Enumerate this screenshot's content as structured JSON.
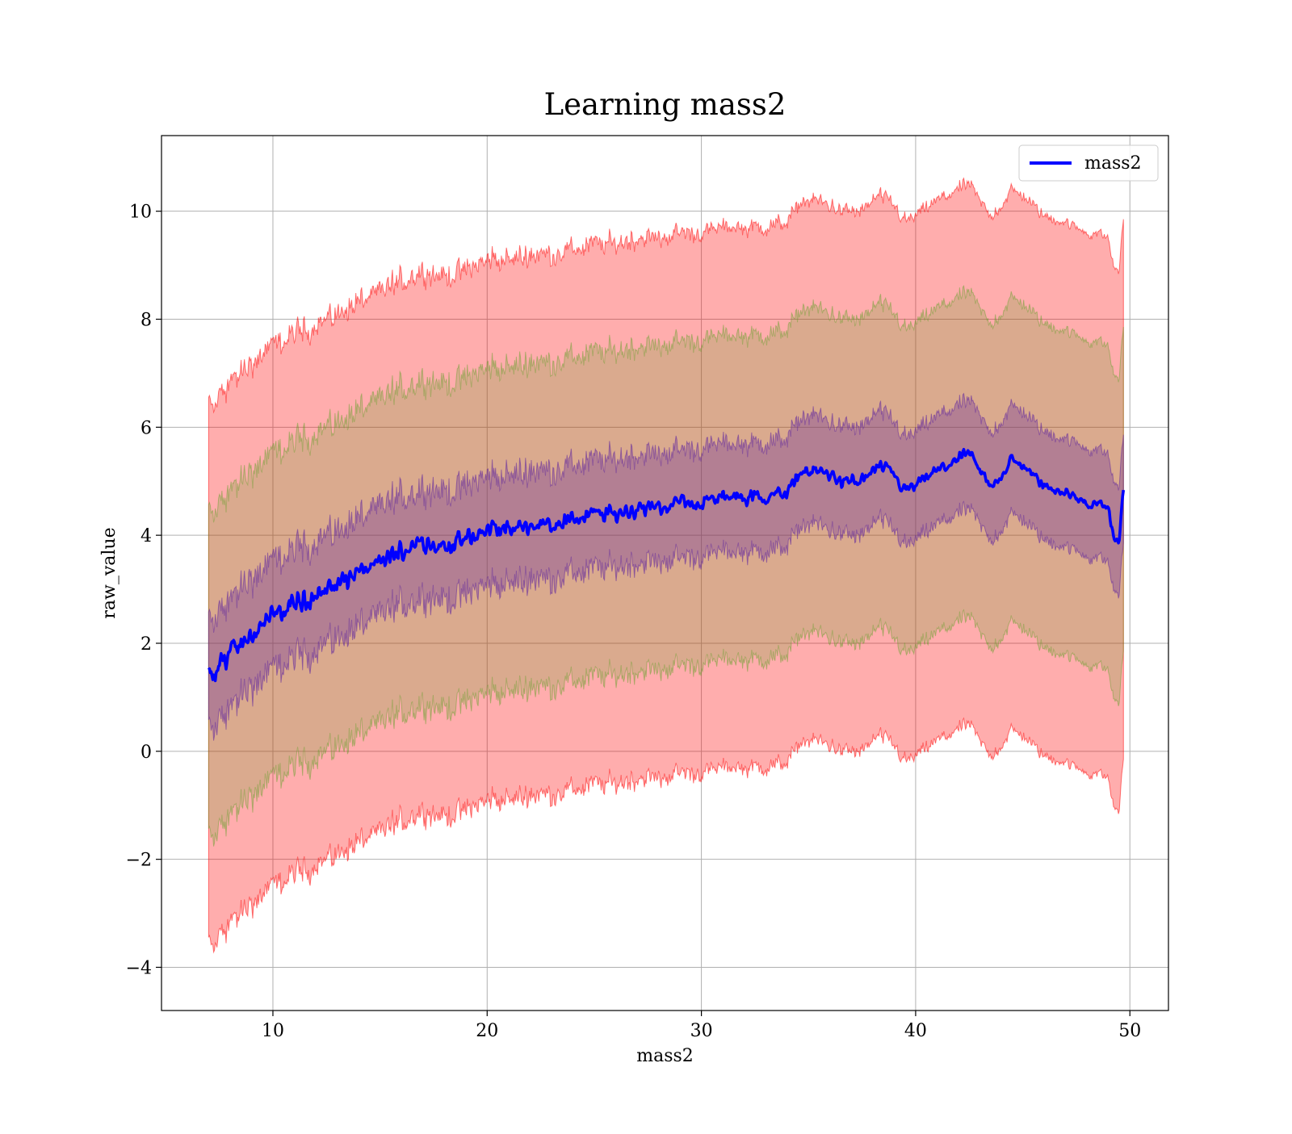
{
  "chart_data": {
    "type": "area",
    "title": "Learning mass2",
    "xlabel": "mass2",
    "ylabel": "raw_value",
    "xlim": [
      4.8,
      51.8
    ],
    "ylim": [
      -4.8,
      11.4
    ],
    "xticks": [
      10,
      20,
      30,
      40,
      50
    ],
    "yticks": [
      -4,
      -2,
      0,
      2,
      4,
      6,
      8,
      10
    ],
    "ytick_labels": [
      "−4",
      "−2",
      "0",
      "2",
      "4",
      "6",
      "8",
      "10"
    ],
    "grid": true,
    "legend_position": "top-right",
    "series": [
      {
        "name": "mass2",
        "color": "#0000ff",
        "x": [
          7.0,
          7.3,
          7.6,
          8.0,
          8.5,
          9.0,
          9.5,
          10.0,
          11.0,
          12.0,
          13.0,
          14.0,
          15.0,
          16.0,
          17.0,
          18.0,
          19.0,
          20.0,
          21.0,
          22.0,
          23.0,
          24.0,
          25.0,
          26.0,
          27.0,
          28.0,
          29.0,
          30.0,
          31.0,
          32.0,
          33.0,
          34.0,
          34.7,
          35.5,
          36.5,
          37.5,
          38.3,
          39.0,
          39.5,
          40.0,
          41.0,
          42.0,
          42.5,
          43.0,
          43.5,
          44.0,
          44.5,
          45.0,
          45.5,
          46.0,
          47.0,
          48.0,
          48.5,
          49.0,
          49.2,
          49.5,
          49.7
        ],
        "y": [
          1.4,
          1.3,
          1.7,
          1.8,
          2.0,
          2.2,
          2.3,
          2.5,
          2.7,
          2.9,
          3.1,
          3.3,
          3.5,
          3.7,
          3.9,
          3.8,
          3.9,
          4.1,
          4.1,
          4.2,
          4.2,
          4.3,
          4.4,
          4.4,
          4.5,
          4.5,
          4.6,
          4.6,
          4.7,
          4.7,
          4.7,
          4.8,
          5.2,
          5.2,
          5.0,
          5.0,
          5.3,
          5.1,
          4.8,
          4.9,
          5.2,
          5.4,
          5.5,
          5.2,
          4.9,
          5.1,
          5.4,
          5.3,
          5.1,
          4.9,
          4.8,
          4.6,
          4.6,
          4.5,
          4.0,
          3.9,
          4.9
        ]
      }
    ],
    "bands": [
      {
        "color": "#ff0000",
        "opacity": 0.32,
        "offset": 5.0
      },
      {
        "color": "#55a020",
        "opacity": 0.22,
        "offset": 3.0
      },
      {
        "color": "#5a1fa0",
        "opacity": 0.3,
        "offset": 1.0
      }
    ]
  }
}
